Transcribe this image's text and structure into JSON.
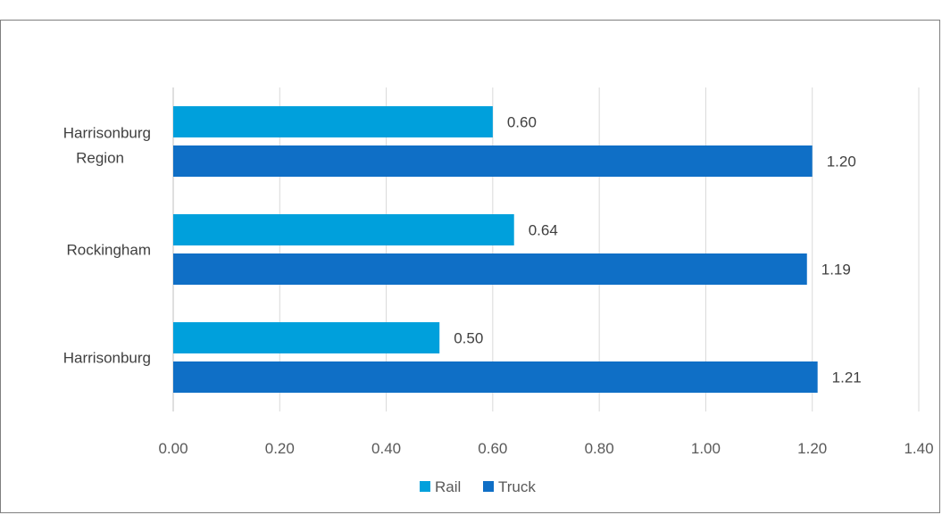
{
  "chart_data": {
    "type": "bar",
    "orientation": "horizontal",
    "title": "",
    "categories": [
      "Harrisonburg",
      "Rockingham",
      "Harrisonburg Region"
    ],
    "series": [
      {
        "name": "Rail",
        "values": [
          0.5,
          0.64,
          0.6
        ],
        "labels": [
          "0.50",
          "0.64",
          "0.60"
        ],
        "color": "#00a0dc"
      },
      {
        "name": "Truck",
        "values": [
          1.21,
          1.19,
          1.2
        ],
        "labels": [
          "1.21",
          "1.19",
          "1.20"
        ],
        "color": "#0f6fc6"
      }
    ],
    "xlim": [
      0,
      1.4
    ],
    "xticks": [
      "0.00",
      "0.20",
      "0.40",
      "0.60",
      "0.80",
      "1.00",
      "1.20",
      "1.40"
    ],
    "grid": true,
    "legend_position": "bottom"
  }
}
